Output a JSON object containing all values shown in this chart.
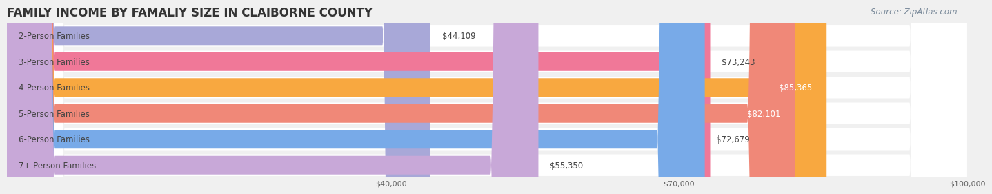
{
  "title": "FAMILY INCOME BY FAMALIY SIZE IN CLAIBORNE COUNTY",
  "source": "Source: ZipAtlas.com",
  "categories": [
    "2-Person Families",
    "3-Person Families",
    "4-Person Families",
    "5-Person Families",
    "6-Person Families",
    "7+ Person Families"
  ],
  "values": [
    44109,
    73243,
    85365,
    82101,
    72679,
    55350
  ],
  "bar_colors": [
    "#a8a8d8",
    "#f07898",
    "#f8a840",
    "#f08878",
    "#78aae8",
    "#c8a8d8"
  ],
  "xmin": 0,
  "xmax": 100000,
  "xticks": [
    40000,
    70000,
    100000
  ],
  "xtick_labels": [
    "$40,000",
    "$70,000",
    "$100,000"
  ],
  "background_color": "#f0f0f0",
  "title_fontsize": 12,
  "label_fontsize": 8.5,
  "value_fontsize": 8.5,
  "source_fontsize": 8.5
}
